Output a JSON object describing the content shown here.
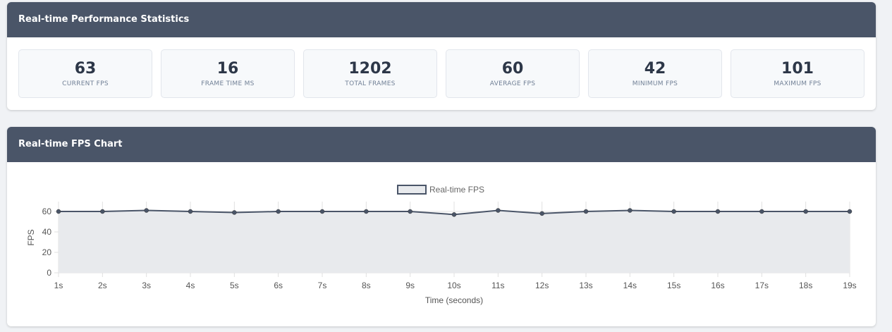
{
  "stats_panel": {
    "title": "Real-time Performance Statistics",
    "cards": [
      {
        "value": "63",
        "label": "CURRENT FPS"
      },
      {
        "value": "16",
        "label": "FRAME TIME MS"
      },
      {
        "value": "1202",
        "label": "TOTAL FRAMES"
      },
      {
        "value": "60",
        "label": "AVERAGE FPS"
      },
      {
        "value": "42",
        "label": "MINIMUM FPS"
      },
      {
        "value": "101",
        "label": "MAXIMUM FPS"
      }
    ]
  },
  "chart_panel": {
    "title": "Real-time FPS Chart"
  },
  "colors": {
    "header_bg": "#4a5568",
    "line": "#4a5568",
    "fill": "#e8eaed"
  },
  "chart_data": {
    "type": "area",
    "categories": [
      "1s",
      "2s",
      "3s",
      "4s",
      "5s",
      "6s",
      "7s",
      "8s",
      "9s",
      "10s",
      "11s",
      "12s",
      "13s",
      "14s",
      "15s",
      "16s",
      "17s",
      "18s",
      "19s"
    ],
    "series": [
      {
        "name": "Real-time FPS",
        "values": [
          60,
          60,
          61,
          60,
          59,
          60,
          60,
          60,
          60,
          57,
          61,
          58,
          60,
          61,
          60,
          60,
          60,
          60,
          60
        ]
      }
    ],
    "xlabel": "Time (seconds)",
    "ylabel": "FPS",
    "ylim": [
      0,
      60
    ],
    "yticks": [
      "0",
      "20",
      "40",
      "60"
    ],
    "legend": "top",
    "grid": true
  }
}
